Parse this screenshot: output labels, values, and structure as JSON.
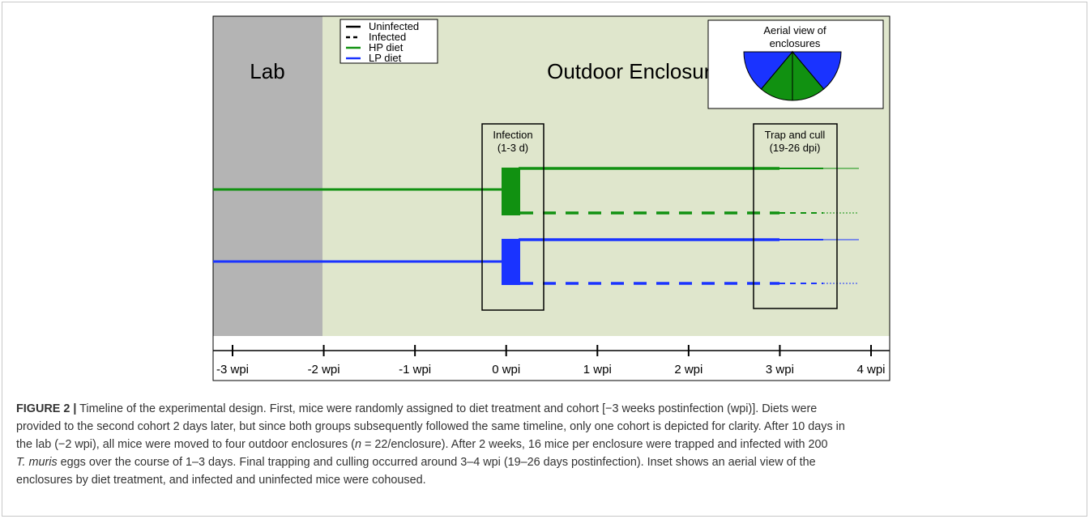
{
  "figure": {
    "lab_label": "Lab",
    "enclosure_label": "Outdoor Enclosures",
    "legend": [
      "Uninfected",
      "Infected",
      "HP diet",
      "LP diet"
    ],
    "inset_title": [
      "Aerial view of",
      "enclosures"
    ],
    "infection_box": [
      "Infection",
      "(1-3 d)"
    ],
    "trap_box": [
      "Trap and cull",
      "(19-26 dpi)"
    ],
    "ticks": [
      "-3 wpi",
      "-2 wpi",
      "-1 wpi",
      "0 wpi",
      "1 wpi",
      "2 wpi",
      "3 wpi",
      "4 wpi"
    ]
  },
  "caption": {
    "label": "FIGURE 2",
    "separator": "|",
    "lines": [
      [
        {
          "text": "Timeline of the experimental design. First, mice were randomly assigned to diet treatment and cohort [−3 weeks postinfection (wpi)]. Diets were"
        }
      ],
      [
        {
          "text": "provided to the second cohort 2 days later, but since both groups subsequently followed the same timeline, only one cohort is depicted for clarity. After 10 days in"
        }
      ],
      [
        {
          "text": "the lab (−2 wpi), all mice were moved to four outdoor enclosures ("
        },
        {
          "text": "n",
          "italic": true
        },
        {
          "text": " = 22/enclosure). After 2 weeks, 16 mice per enclosure were trapped and infected with 200"
        }
      ],
      [
        {
          "text": "T. muris",
          "italic": true
        },
        {
          "text": " eggs over the course of 1–3 days. Final trapping and culling occurred around 3–4 wpi (19–26 days postinfection). Inset shows an aerial view of the"
        }
      ],
      [
        {
          "text": "enclosures by diet treatment, and infected and uninfected mice were cohoused."
        }
      ]
    ]
  }
}
